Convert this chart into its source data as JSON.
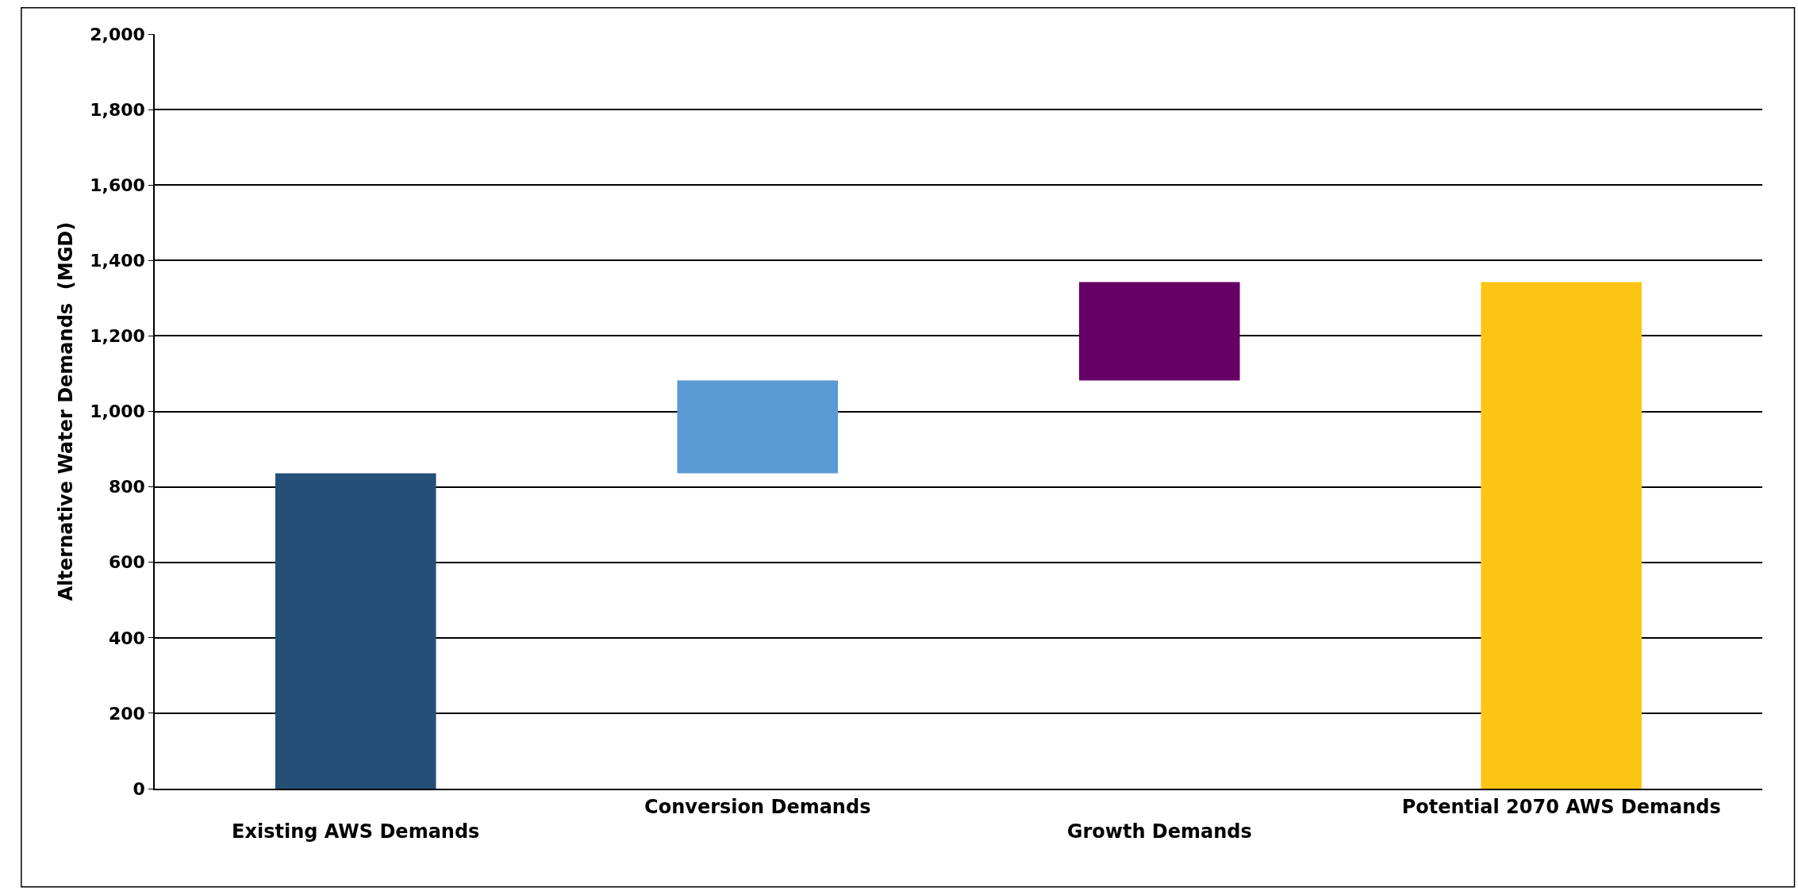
{
  "chart_data": {
    "type": "bar",
    "ylabel": "Alternative Water Demands  (MGD)",
    "categories": [
      "Existing AWS Demands",
      "Conversion Demands",
      "Growth Demands",
      "Potential 2070 AWS Demands"
    ],
    "values": [
      836,
      246,
      261,
      1343
    ],
    "base": [
      0,
      836,
      1082,
      0
    ],
    "colors": [
      "#245078",
      "#5b9bd5",
      "#660066",
      "#fdc513"
    ],
    "ylim": [
      0,
      2000
    ],
    "yticks": [
      0,
      {
        "value": 200,
        "label": "200"
      },
      {
        "value": 400,
        "label": "400"
      },
      {
        "value": 600,
        "label": "600"
      },
      {
        "value": 800,
        "label": "800"
      },
      {
        "value": 1000,
        "label": "1,000"
      },
      {
        "value": 1200,
        "label": "1,200"
      },
      {
        "value": 1400,
        "label": "1,400"
      },
      {
        "value": 1600,
        "label": "1,600"
      },
      {
        "value": 1800,
        "label": "1,800"
      },
      {
        "value": 2000,
        "label": "2,000"
      }
    ],
    "grid": "y"
  }
}
